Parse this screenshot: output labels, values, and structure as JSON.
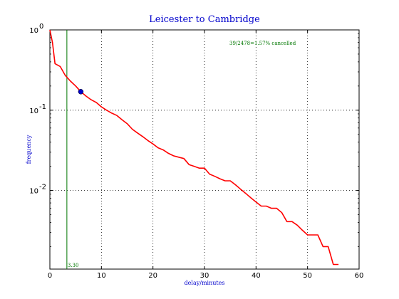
{
  "chart_data": {
    "type": "line",
    "title": "Leicester to Cambridge",
    "xlabel": "delay/minutes",
    "ylabel": "frequency",
    "xlim": [
      0,
      60
    ],
    "ylim": [
      0.00105,
      1.0
    ],
    "yscale": "log",
    "grid": true,
    "x_ticks": [
      0,
      10,
      20,
      30,
      40,
      50,
      60
    ],
    "x_tick_labels": [
      "0",
      "10",
      "20",
      "30",
      "40",
      "50",
      "60"
    ],
    "y_ticks": [
      1.0,
      0.1,
      0.01
    ],
    "y_tick_labels": [
      {
        "base": "10",
        "exp": "0"
      },
      {
        "base": "10",
        "exp": "-1"
      },
      {
        "base": "10",
        "exp": "-2"
      }
    ],
    "series": [
      {
        "color": "#ff0000",
        "x": [
          0,
          0.5,
          1,
          2,
          3,
          4,
          5,
          6,
          7,
          8,
          9,
          10,
          11,
          12,
          13,
          14,
          15,
          16,
          17,
          18,
          19,
          20,
          21,
          22,
          23,
          24,
          25,
          26,
          27,
          28,
          29,
          30,
          31,
          32,
          33,
          34,
          35,
          36,
          37,
          38,
          39,
          40,
          41,
          42,
          43,
          44,
          45,
          46,
          47,
          48,
          49,
          50,
          51,
          52,
          53,
          54,
          55,
          56
        ],
        "y": [
          1.0,
          0.7,
          0.38,
          0.35,
          0.27,
          0.23,
          0.2,
          0.17,
          0.15,
          0.135,
          0.125,
          0.11,
          0.1,
          0.092,
          0.086,
          0.076,
          0.068,
          0.058,
          0.052,
          0.047,
          0.042,
          0.038,
          0.034,
          0.032,
          0.029,
          0.027,
          0.026,
          0.025,
          0.021,
          0.02,
          0.019,
          0.019,
          0.016,
          0.015,
          0.014,
          0.0132,
          0.0132,
          0.0118,
          0.0104,
          0.0092,
          0.0081,
          0.0072,
          0.0064,
          0.0064,
          0.006,
          0.006,
          0.0053,
          0.0041,
          0.0041,
          0.0037,
          0.0032,
          0.0028,
          0.0028,
          0.0028,
          0.002,
          0.002,
          0.0012,
          0.0012
        ]
      }
    ],
    "marker": {
      "x": 6,
      "y": 0.17,
      "color": "#0000cc"
    },
    "vline": {
      "x": 3.3,
      "color": "#007700",
      "label": "3.30"
    },
    "annotation": {
      "text": "39/2478=1.57% cancelled",
      "x": 35,
      "y": 0.67,
      "color": "#007700"
    }
  }
}
